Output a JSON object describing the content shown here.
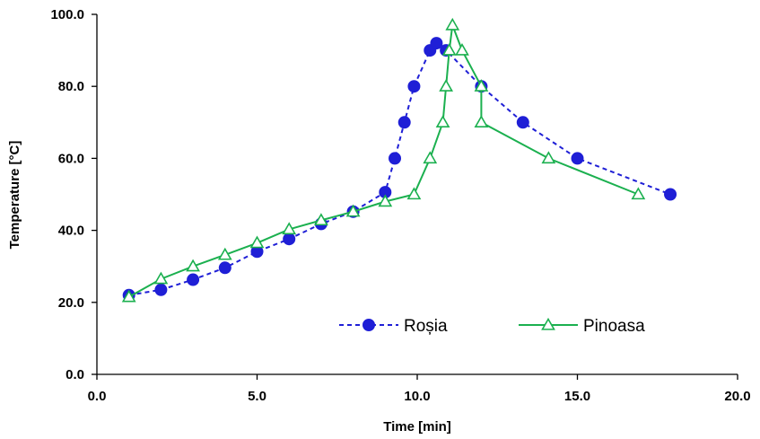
{
  "chart_data": {
    "type": "line",
    "xlabel": "Time [min]",
    "ylabel": "Temperature [°C]",
    "xlim": [
      0,
      20
    ],
    "ylim": [
      0,
      100
    ],
    "xticks": [
      "0.0",
      "5.0",
      "10.0",
      "15.0",
      "20.0"
    ],
    "yticks": [
      "0.0",
      "20.0",
      "40.0",
      "60.0",
      "80.0",
      "100.0"
    ],
    "grid": false,
    "legend_position": "bottom-center",
    "series": [
      {
        "name": "Roșia",
        "color": "#1f1fd6",
        "line_style": "dashed",
        "marker": "filled-circle",
        "x": [
          1.0,
          2.0,
          3.0,
          4.0,
          5.0,
          6.0,
          7.0,
          8.0,
          9.0,
          9.3,
          9.6,
          9.9,
          10.4,
          10.6,
          10.9,
          12.0,
          13.3,
          15.0,
          17.9
        ],
        "y": [
          22.0,
          23.5,
          26.3,
          29.6,
          34.1,
          37.6,
          41.8,
          45.2,
          50.6,
          60.0,
          70.0,
          80.0,
          90.0,
          92.0,
          90.0,
          80.0,
          70.0,
          60.0,
          50.0
        ]
      },
      {
        "name": "Pinoasa",
        "color": "#1bb04f",
        "line_style": "solid",
        "marker": "open-triangle",
        "x": [
          1.0,
          2.0,
          3.0,
          4.0,
          5.0,
          6.0,
          7.0,
          8.0,
          9.0,
          9.9,
          10.4,
          10.8,
          10.9,
          11.0,
          11.1,
          11.4,
          12.0,
          12.0,
          14.1,
          16.9
        ],
        "y": [
          21.5,
          26.5,
          30.0,
          33.2,
          36.5,
          40.3,
          42.8,
          45.2,
          48.0,
          50.0,
          60.0,
          70.0,
          80.0,
          90.0,
          97.0,
          90.0,
          80.0,
          70.0,
          60.0,
          50.0
        ]
      }
    ]
  }
}
